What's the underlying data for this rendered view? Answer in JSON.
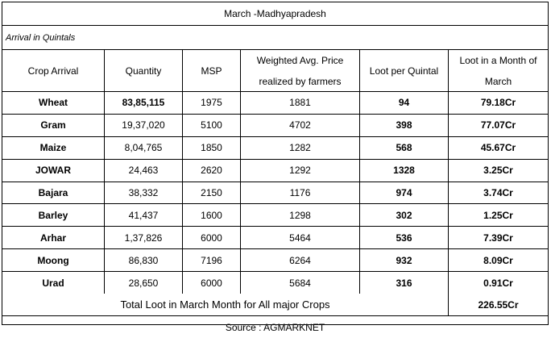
{
  "title": "March -Madhyapradesh",
  "subtitle": "Arrival in Quintals",
  "headers": {
    "crop": "Crop Arrival",
    "quantity": "Quantity",
    "msp": "MSP",
    "price_line1": "Weighted Avg. Price",
    "price_line2": "realized by farmers",
    "loot_q": "Loot per Quintal",
    "loot_m_line1": "Loot in a Month of",
    "loot_m_line2": "March"
  },
  "rows": [
    {
      "crop": "Wheat",
      "quantity": "83,85,115",
      "msp": "1975",
      "price": "1881",
      "loot_q": "94",
      "loot_m": "79.18Cr"
    },
    {
      "crop": "Gram",
      "quantity": "19,37,020",
      "msp": "5100",
      "price": "4702",
      "loot_q": "398",
      "loot_m": "77.07Cr"
    },
    {
      "crop": "Maize",
      "quantity": "8,04,765",
      "msp": "1850",
      "price": "1282",
      "loot_q": "568",
      "loot_m": "45.67Cr"
    },
    {
      "crop": "JOWAR",
      "quantity": "24,463",
      "msp": "2620",
      "price": "1292",
      "loot_q": "1328",
      "loot_m": "3.25Cr"
    },
    {
      "crop": "Bajara",
      "quantity": "38,332",
      "msp": "2150",
      "price": "1176",
      "loot_q": "974",
      "loot_m": "3.74Cr"
    },
    {
      "crop": "Barley",
      "quantity": "41,437",
      "msp": "1600",
      "price": "1298",
      "loot_q": "302",
      "loot_m": "1.25Cr"
    },
    {
      "crop": "Arhar",
      "quantity": "1,37,826",
      "msp": "6000",
      "price": "5464",
      "loot_q": "536",
      "loot_m": "7.39Cr"
    },
    {
      "crop": "Moong",
      "quantity": "86,830",
      "msp": "7196",
      "price": "6264",
      "loot_q": "932",
      "loot_m": "8.09Cr"
    },
    {
      "crop": "Urad",
      "quantity": "28,650",
      "msp": "6000",
      "price": "5684",
      "loot_q": "316",
      "loot_m": "0.91Cr"
    }
  ],
  "total": {
    "label": "Total Loot in March Month for All major Crops",
    "value": "226.55Cr"
  },
  "source": "Source : AGMARKNET"
}
